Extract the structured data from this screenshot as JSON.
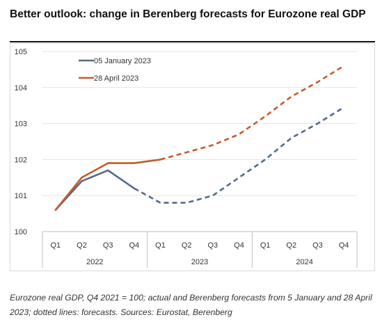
{
  "header": {
    "title": "Better outlook: change in Berenberg forecasts for Eurozone real GDP"
  },
  "caption": "Eurozone real GDP, Q4 2021 = 100; actual and Berenberg forecasts from 5 January and 28 April 2023; dotted lines: forecasts. Sources: Eurostat, Berenberg",
  "chart_data": {
    "type": "line",
    "title": "Better outlook: change in Berenberg forecasts for Eurozone real GDP",
    "categories": [
      "Q1",
      "Q2",
      "Q3",
      "Q4",
      "Q1",
      "Q2",
      "Q3",
      "Q4",
      "Q1",
      "Q2",
      "Q3",
      "Q4"
    ],
    "groups": [
      {
        "label": "2022",
        "count": 4
      },
      {
        "label": "2023",
        "count": 4
      },
      {
        "label": "2024",
        "count": 4
      }
    ],
    "ylim": [
      100,
      105
    ],
    "yticks": [
      100,
      101,
      102,
      103,
      104,
      105
    ],
    "grid": true,
    "legend_position": "top-left",
    "series": [
      {
        "name": "05 January 2023",
        "color": "#546A8A",
        "values": [
          100.6,
          101.4,
          101.7,
          101.2,
          100.8,
          100.8,
          101.0,
          101.5,
          102.0,
          102.6,
          103.0,
          103.45
        ],
        "forecast_from_index": 3
      },
      {
        "name": "28 April 2023",
        "color": "#C55A28",
        "values": [
          100.6,
          101.5,
          101.9,
          101.9,
          102.0,
          102.2,
          102.4,
          102.7,
          103.2,
          103.75,
          104.15,
          104.6
        ],
        "forecast_from_index": 4
      }
    ]
  }
}
